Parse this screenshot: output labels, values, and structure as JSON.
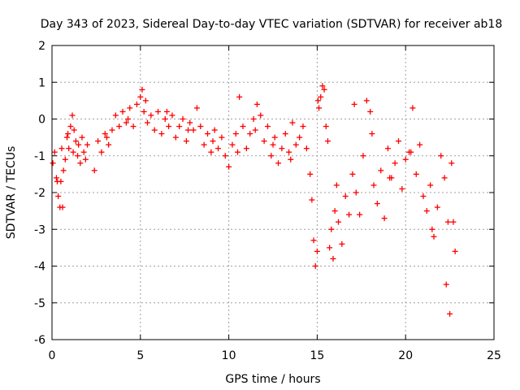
{
  "chart_data": {
    "type": "scatter",
    "title": "Day 343 of 2023, Sidereal Day-to-day VTEC variation (SDTVAR) for receiver ab18",
    "xlabel": "GPS time / hours",
    "ylabel": "SDTVAR / TECUs",
    "xlim": [
      0,
      25
    ],
    "ylim": [
      -6,
      2
    ],
    "xticks": [
      "0",
      "5",
      "10",
      "15",
      "20",
      "25"
    ],
    "yticks": [
      "-6",
      "-5",
      "-4",
      "-3",
      "-2",
      "-1",
      "0",
      "1",
      "2"
    ],
    "grid": true,
    "marker": "plus",
    "color": "#ff0000",
    "series": [
      {
        "name": "SDTVAR",
        "x": [
          0.05,
          0.15,
          0.25,
          0.35,
          0.45,
          0.5,
          0.55,
          0.65,
          0.75,
          0.85,
          0.95,
          1.05,
          1.15,
          1.25,
          1.35,
          1.45,
          1.5,
          1.6,
          1.7,
          1.8,
          1.9,
          2.0,
          2.4,
          2.6,
          2.8,
          3.0,
          3.2,
          3.4,
          3.6,
          3.8,
          4.0,
          4.2,
          4.4,
          4.6,
          4.8,
          5.0,
          5.1,
          5.2,
          5.3,
          5.4,
          5.6,
          5.8,
          6.0,
          6.2,
          6.4,
          6.6,
          6.8,
          7.0,
          7.2,
          7.4,
          7.6,
          7.8,
          8.0,
          8.2,
          8.4,
          8.6,
          8.8,
          9.0,
          9.2,
          9.4,
          9.6,
          9.8,
          10.0,
          10.2,
          10.4,
          10.6,
          10.8,
          11.0,
          11.2,
          11.4,
          11.6,
          11.8,
          12.0,
          12.2,
          12.4,
          12.6,
          12.8,
          13.0,
          13.2,
          13.4,
          13.6,
          13.8,
          14.0,
          14.2,
          14.4,
          14.6,
          14.7,
          14.8,
          14.9,
          15.0,
          15.1,
          15.2,
          15.3,
          15.4,
          15.5,
          15.6,
          15.7,
          15.8,
          15.9,
          16.0,
          16.2,
          16.4,
          16.6,
          16.8,
          17.0,
          17.2,
          17.4,
          17.6,
          17.8,
          18.0,
          18.2,
          18.4,
          18.6,
          18.8,
          19.0,
          19.2,
          19.4,
          19.6,
          19.8,
          20.0,
          20.2,
          20.4,
          20.6,
          20.8,
          21.0,
          21.2,
          21.4,
          21.6,
          21.8,
          22.0,
          22.2,
          22.4,
          22.6,
          22.8,
          0.3,
          0.6,
          0.9,
          1.2,
          3.1,
          4.3,
          6.5,
          7.7,
          9.1,
          10.5,
          11.5,
          12.5,
          13.5,
          15.05,
          16.1,
          17.1,
          18.1,
          19.1,
          20.3,
          21.5,
          22.3,
          22.5,
          22.7
        ],
        "y": [
          -1.2,
          -0.9,
          -1.6,
          -2.1,
          -2.4,
          -1.7,
          -0.8,
          -1.4,
          -1.1,
          -0.5,
          -0.8,
          -0.2,
          0.1,
          -0.3,
          -0.6,
          -1.0,
          -0.7,
          -1.2,
          -0.5,
          -0.9,
          -1.1,
          -0.7,
          -1.4,
          -0.6,
          -0.9,
          -0.4,
          -0.7,
          -0.3,
          0.1,
          -0.2,
          0.2,
          -0.1,
          0.3,
          -0.2,
          0.4,
          0.6,
          0.8,
          0.2,
          0.5,
          -0.1,
          0.1,
          -0.3,
          0.2,
          -0.4,
          0.0,
          -0.2,
          0.1,
          -0.5,
          -0.2,
          0.0,
          -0.6,
          -0.1,
          -0.3,
          0.3,
          -0.2,
          -0.7,
          -0.4,
          -0.9,
          -0.3,
          -0.8,
          -0.5,
          -1.0,
          -1.3,
          -0.7,
          -0.4,
          0.6,
          -0.2,
          -0.8,
          -0.4,
          0.0,
          0.4,
          0.1,
          -0.6,
          -0.2,
          -1.0,
          -0.5,
          -1.2,
          -0.8,
          -0.4,
          -0.9,
          -0.1,
          -0.7,
          -0.5,
          -0.2,
          -0.8,
          -1.5,
          -2.2,
          -3.3,
          -4.0,
          -3.6,
          0.3,
          0.6,
          0.9,
          0.8,
          -0.2,
          -0.6,
          -3.5,
          -3.0,
          -3.8,
          -2.5,
          -2.8,
          -3.4,
          -2.1,
          -2.6,
          -1.5,
          -2.0,
          -2.6,
          -1.0,
          0.5,
          0.2,
          -1.8,
          -2.3,
          -1.4,
          -2.7,
          -0.8,
          -1.6,
          -1.2,
          -0.6,
          -1.9,
          -1.1,
          -0.9,
          0.3,
          -1.5,
          -0.7,
          -2.1,
          -2.5,
          -1.8,
          -3.2,
          -2.4,
          -1.0,
          -1.6,
          -2.8,
          -1.2,
          -3.6,
          -1.7,
          -2.4,
          -0.4,
          -0.9,
          -0.5,
          0.0,
          0.2,
          -0.3,
          -0.6,
          -0.9,
          -0.3,
          -0.7,
          -1.1,
          0.5,
          -1.8,
          0.4,
          -0.4,
          -1.6,
          -0.9,
          -3.0,
          -4.5,
          -5.3,
          -2.8
        ]
      }
    ]
  }
}
